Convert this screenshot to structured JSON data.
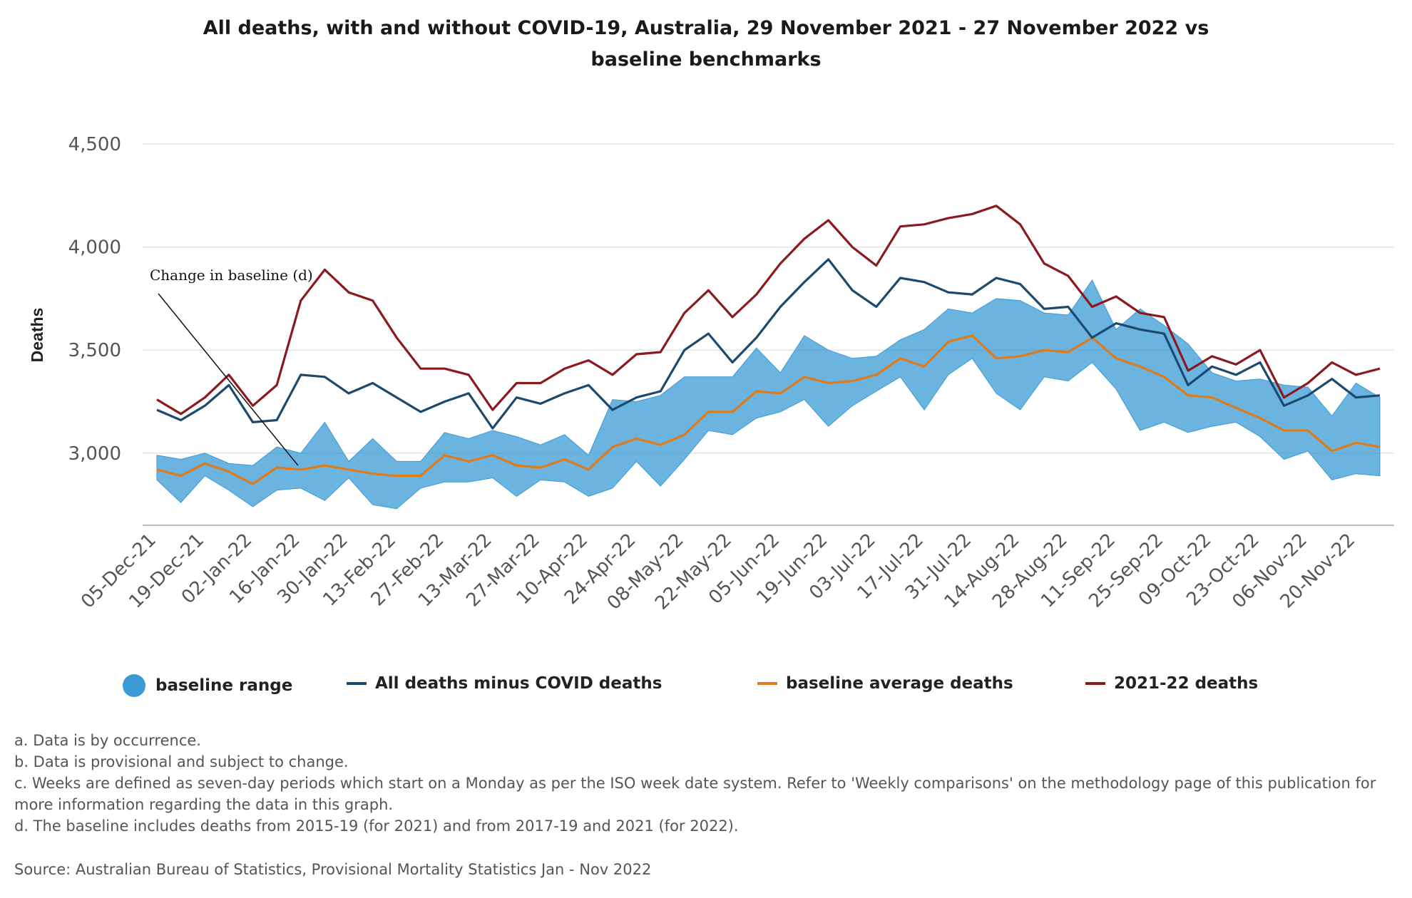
{
  "chart_data": {
    "type": "line",
    "title_line1": "All deaths, with and without COVID-19, Australia, 29 November 2021 - 27 November 2022 vs",
    "title_line2": "baseline benchmarks",
    "ylabel": "Deaths",
    "xlabel": "",
    "ylim": [
      2650,
      4500
    ],
    "yticks": [
      3000,
      3500,
      4000,
      4500
    ],
    "ytick_labels": [
      "3,000",
      "3,500",
      "4,000",
      "4,500"
    ],
    "grid": true,
    "legend_position": "bottom",
    "x": [
      "05-Dec-21",
      "12-Dec-21",
      "19-Dec-21",
      "26-Dec-21",
      "02-Jan-22",
      "09-Jan-22",
      "16-Jan-22",
      "23-Jan-22",
      "30-Jan-22",
      "06-Feb-22",
      "13-Feb-22",
      "20-Feb-22",
      "27-Feb-22",
      "06-Mar-22",
      "13-Mar-22",
      "20-Mar-22",
      "27-Mar-22",
      "03-Apr-22",
      "10-Apr-22",
      "17-Apr-22",
      "24-Apr-22",
      "01-May-22",
      "08-May-22",
      "15-May-22",
      "22-May-22",
      "29-May-22",
      "05-Jun-22",
      "12-Jun-22",
      "19-Jun-22",
      "26-Jun-22",
      "03-Jul-22",
      "10-Jul-22",
      "17-Jul-22",
      "24-Jul-22",
      "31-Jul-22",
      "07-Aug-22",
      "14-Aug-22",
      "21-Aug-22",
      "28-Aug-22",
      "04-Sep-22",
      "11-Sep-22",
      "18-Sep-22",
      "25-Sep-22",
      "02-Oct-22",
      "09-Oct-22",
      "16-Oct-22",
      "23-Oct-22",
      "30-Oct-22",
      "06-Nov-22",
      "13-Nov-22",
      "20-Nov-22",
      "27-Nov-22"
    ],
    "x_tick_labels": [
      "05-Dec-21",
      "19-Dec-21",
      "02-Jan-22",
      "16-Jan-22",
      "30-Jan-22",
      "13-Feb-22",
      "27-Feb-22",
      "13-Mar-22",
      "27-Mar-22",
      "10-Apr-22",
      "24-Apr-22",
      "08-May-22",
      "22-May-22",
      "05-Jun-22",
      "19-Jun-22",
      "03-Jul-22",
      "17-Jul-22",
      "31-Jul-22",
      "14-Aug-22",
      "28-Aug-22",
      "11-Sep-22",
      "25-Sep-22",
      "09-Oct-22",
      "23-Oct-22",
      "06-Nov-22",
      "20-Nov-22"
    ],
    "series": [
      {
        "name": "baseline range",
        "kind": "range",
        "color": "#3a9bd5",
        "low": [
          2870,
          2760,
          2890,
          2820,
          2740,
          2820,
          2830,
          2770,
          2880,
          2750,
          2730,
          2830,
          2860,
          2860,
          2880,
          2790,
          2870,
          2860,
          2790,
          2830,
          2960,
          2840,
          2970,
          3110,
          3090,
          3170,
          3200,
          3260,
          3130,
          3230,
          3300,
          3370,
          3210,
          3380,
          3460,
          3290,
          3210,
          3370,
          3350,
          3440,
          3310,
          3110,
          3150,
          3100,
          3130,
          3150,
          3080,
          2970,
          3010,
          2870,
          2900,
          2890
        ],
        "high": [
          2990,
          2970,
          3000,
          2950,
          2940,
          3030,
          3000,
          3150,
          2960,
          3070,
          2960,
          2960,
          3100,
          3070,
          3110,
          3080,
          3040,
          3090,
          2990,
          3260,
          3250,
          3280,
          3370,
          3370,
          3370,
          3510,
          3390,
          3570,
          3500,
          3460,
          3470,
          3550,
          3600,
          3700,
          3680,
          3750,
          3740,
          3680,
          3670,
          3840,
          3600,
          3700,
          3620,
          3530,
          3390,
          3350,
          3360,
          3330,
          3320,
          3180,
          3340,
          3270
        ]
      },
      {
        "name": "All deaths minus COVID deaths",
        "kind": "line",
        "color": "#1b4a6e",
        "values": [
          3210,
          3160,
          3230,
          3330,
          3150,
          3160,
          3380,
          3370,
          3290,
          3340,
          3270,
          3200,
          3250,
          3290,
          3120,
          3270,
          3240,
          3290,
          3330,
          3210,
          3270,
          3300,
          3500,
          3580,
          3440,
          3560,
          3710,
          3830,
          3940,
          3790,
          3710,
          3850,
          3830,
          3780,
          3770,
          3850,
          3820,
          3700,
          3710,
          3560,
          3630,
          3600,
          3580,
          3330,
          3420,
          3380,
          3440,
          3230,
          3280,
          3360,
          3270,
          3280
        ]
      },
      {
        "name": "baseline average deaths",
        "kind": "line",
        "color": "#e07b1a",
        "values": [
          2920,
          2890,
          2950,
          2910,
          2850,
          2930,
          2920,
          2940,
          2920,
          2900,
          2890,
          2890,
          2990,
          2960,
          2990,
          2940,
          2930,
          2970,
          2920,
          3030,
          3070,
          3040,
          3090,
          3200,
          3200,
          3300,
          3290,
          3370,
          3340,
          3350,
          3380,
          3460,
          3420,
          3540,
          3570,
          3460,
          3470,
          3500,
          3490,
          3560,
          3460,
          3420,
          3370,
          3280,
          3270,
          3220,
          3170,
          3110,
          3110,
          3010,
          3050,
          3030
        ]
      },
      {
        "name": "2021-22 deaths",
        "kind": "line",
        "color": "#8b1a1f",
        "values": [
          3260,
          3190,
          3270,
          3380,
          3230,
          3330,
          3740,
          3890,
          3780,
          3740,
          3560,
          3410,
          3410,
          3380,
          3210,
          3340,
          3340,
          3410,
          3450,
          3380,
          3480,
          3490,
          3680,
          3790,
          3660,
          3770,
          3920,
          4040,
          4130,
          4000,
          3910,
          4100,
          4110,
          4140,
          4160,
          4200,
          4110,
          3920,
          3860,
          3710,
          3760,
          3680,
          3660,
          3400,
          3470,
          3430,
          3500,
          3270,
          3340,
          3440,
          3380,
          3410
        ]
      }
    ],
    "annotation": {
      "text": "Change in baseline (d)",
      "at_x": "16-Jan-22"
    }
  },
  "notes": [
    "a. Data is by occurrence.",
    "b. Data is provisional and subject to change.",
    "c. Weeks are defined as seven-day periods which start on a Monday as per the ISO week date system. Refer to 'Weekly comparisons' on the methodology page of this publication for more information regarding the data in this graph.",
    "d. The baseline includes deaths from 2015-19 (for 2021) and from 2017-19 and 2021 (for 2022)."
  ],
  "source": "Source: Australian Bureau of Statistics, Provisional Mortality Statistics Jan - Nov 2022"
}
